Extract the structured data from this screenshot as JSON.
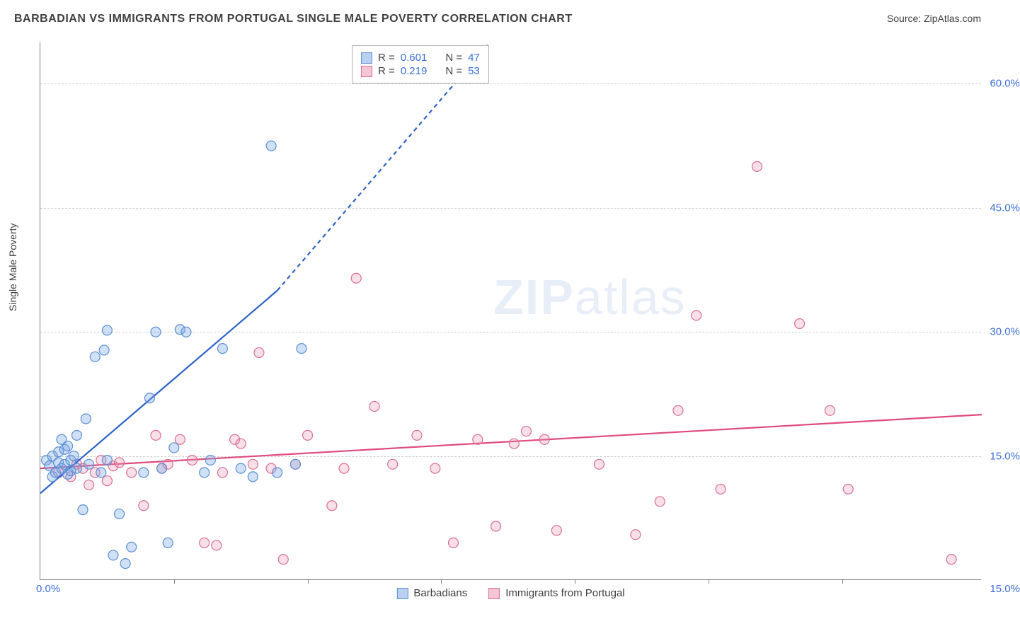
{
  "header": {
    "title": "BARBADIAN VS IMMIGRANTS FROM PORTUGAL SINGLE MALE POVERTY CORRELATION CHART",
    "source": "Source: ZipAtlas.com"
  },
  "ylabel": "Single Male Poverty",
  "watermark": {
    "zip": "ZIP",
    "atlas": "atlas"
  },
  "axes": {
    "xlim": [
      0,
      15.5
    ],
    "ylim": [
      0,
      65
    ],
    "xticks": [
      0.0,
      15.0
    ],
    "xtick_labels": [
      "0.0%",
      "15.0%"
    ],
    "xminor": [
      2.2,
      4.4,
      6.6,
      8.8,
      11.0,
      13.2
    ],
    "yticks": [
      15.0,
      30.0,
      45.0,
      60.0
    ],
    "ytick_labels": [
      "15.0%",
      "30.0%",
      "45.0%",
      "60.0%"
    ]
  },
  "style": {
    "grid_color": "#d0d0d0",
    "axis_color": "#808080",
    "bg": "#ffffff",
    "marker_radius": 7,
    "marker_stroke_width": 1.2,
    "line_width": 2.2,
    "dash_pattern": "6 5"
  },
  "series": {
    "barbadians": {
      "label": "Barbadians",
      "fill": "rgba(120,165,230,0.35)",
      "stroke": "#5b8fd6",
      "swatch_fill": "#b9d0f0",
      "swatch_border": "#5b8fd6",
      "line_color": "#2e62c9",
      "R": "0.601",
      "N": "47",
      "points": [
        [
          0.1,
          14.5
        ],
        [
          0.15,
          13.8
        ],
        [
          0.2,
          12.5
        ],
        [
          0.2,
          15.0
        ],
        [
          0.25,
          13.0
        ],
        [
          0.3,
          14.2
        ],
        [
          0.3,
          15.5
        ],
        [
          0.35,
          13.5
        ],
        [
          0.35,
          17.0
        ],
        [
          0.4,
          14.0
        ],
        [
          0.4,
          15.8
        ],
        [
          0.45,
          12.8
        ],
        [
          0.45,
          16.2
        ],
        [
          0.5,
          14.5
        ],
        [
          0.5,
          13.2
        ],
        [
          0.55,
          15.0
        ],
        [
          0.6,
          17.5
        ],
        [
          0.6,
          13.5
        ],
        [
          0.7,
          8.5
        ],
        [
          0.75,
          19.5
        ],
        [
          0.8,
          14.0
        ],
        [
          0.9,
          27.0
        ],
        [
          1.0,
          13.0
        ],
        [
          1.05,
          27.8
        ],
        [
          1.1,
          30.2
        ],
        [
          1.1,
          14.5
        ],
        [
          1.2,
          3.0
        ],
        [
          1.3,
          8.0
        ],
        [
          1.4,
          2.0
        ],
        [
          1.5,
          4.0
        ],
        [
          1.7,
          13.0
        ],
        [
          1.8,
          22.0
        ],
        [
          1.9,
          30.0
        ],
        [
          2.0,
          13.5
        ],
        [
          2.1,
          4.5
        ],
        [
          2.2,
          16.0
        ],
        [
          2.3,
          30.3
        ],
        [
          2.4,
          30.0
        ],
        [
          2.7,
          13.0
        ],
        [
          2.8,
          14.5
        ],
        [
          3.0,
          28.0
        ],
        [
          3.3,
          13.5
        ],
        [
          3.5,
          12.5
        ],
        [
          3.8,
          52.5
        ],
        [
          3.9,
          13.0
        ],
        [
          4.2,
          14.0
        ],
        [
          4.3,
          28.0
        ]
      ],
      "trend": {
        "x_solid": [
          0.0,
          3.9
        ],
        "y_solid": [
          10.5,
          35.0
        ],
        "x_dash": [
          3.9,
          7.4
        ],
        "y_dash": [
          35.0,
          65.0
        ]
      }
    },
    "portugal": {
      "label": "Immigrants from Portugal",
      "fill": "rgba(235,150,175,0.30)",
      "stroke": "#d87093",
      "swatch_fill": "#f4c6d4",
      "swatch_border": "#d87093",
      "line_color": "#e04a7e",
      "R": "0.219",
      "N": "53",
      "points": [
        [
          0.3,
          13.0
        ],
        [
          0.5,
          12.5
        ],
        [
          0.6,
          14.0
        ],
        [
          0.7,
          13.5
        ],
        [
          0.8,
          11.5
        ],
        [
          0.9,
          13.0
        ],
        [
          1.0,
          14.5
        ],
        [
          1.1,
          12.0
        ],
        [
          1.2,
          13.8
        ],
        [
          1.3,
          14.2
        ],
        [
          1.5,
          13.0
        ],
        [
          1.7,
          9.0
        ],
        [
          1.9,
          17.5
        ],
        [
          2.0,
          13.5
        ],
        [
          2.1,
          14.0
        ],
        [
          2.3,
          17.0
        ],
        [
          2.5,
          14.5
        ],
        [
          2.7,
          4.5
        ],
        [
          2.9,
          4.2
        ],
        [
          3.0,
          13.0
        ],
        [
          3.2,
          17.0
        ],
        [
          3.3,
          16.5
        ],
        [
          3.5,
          14.0
        ],
        [
          3.6,
          27.5
        ],
        [
          3.8,
          13.5
        ],
        [
          4.0,
          2.5
        ],
        [
          4.2,
          14.0
        ],
        [
          4.4,
          17.5
        ],
        [
          4.8,
          9.0
        ],
        [
          5.0,
          13.5
        ],
        [
          5.2,
          36.5
        ],
        [
          5.5,
          21.0
        ],
        [
          5.8,
          14.0
        ],
        [
          6.2,
          17.5
        ],
        [
          6.5,
          13.5
        ],
        [
          6.8,
          4.5
        ],
        [
          7.2,
          17.0
        ],
        [
          7.5,
          6.5
        ],
        [
          7.8,
          16.5
        ],
        [
          8.0,
          18.0
        ],
        [
          8.3,
          17.0
        ],
        [
          8.5,
          6.0
        ],
        [
          9.2,
          14.0
        ],
        [
          9.8,
          5.5
        ],
        [
          10.2,
          9.5
        ],
        [
          10.5,
          20.5
        ],
        [
          10.8,
          32.0
        ],
        [
          11.2,
          11.0
        ],
        [
          11.8,
          50.0
        ],
        [
          12.5,
          31.0
        ],
        [
          13.0,
          20.5
        ],
        [
          13.3,
          11.0
        ],
        [
          15.0,
          2.5
        ]
      ],
      "trend": {
        "x_solid": [
          0.0,
          15.5
        ],
        "y_solid": [
          13.5,
          20.0
        ]
      }
    }
  },
  "corr_box": {
    "r_label": "R =",
    "n_label": "N ="
  }
}
